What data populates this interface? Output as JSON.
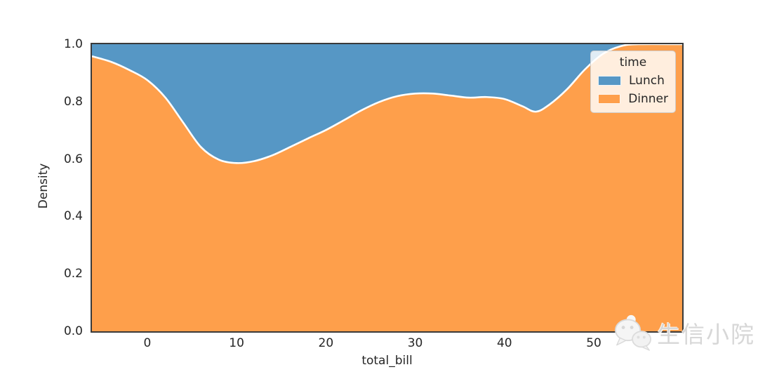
{
  "chart_data": {
    "type": "area",
    "variant": "kde_density_stacked_fill",
    "title": "",
    "xlabel": "total_bill",
    "ylabel": "Density",
    "xlim": [
      -6.2,
      59.9
    ],
    "ylim": [
      0.0,
      1.0
    ],
    "grid": false,
    "x_ticks": {
      "values": [
        0,
        10,
        20,
        30,
        40,
        50
      ],
      "labels": [
        "0",
        "10",
        "20",
        "30",
        "40",
        "50"
      ]
    },
    "y_ticks": {
      "values": [
        0.0,
        0.2,
        0.4,
        0.6,
        0.8,
        1.0
      ],
      "labels": [
        "0.0",
        "0.2",
        "0.4",
        "0.6",
        "0.8",
        "1.0"
      ]
    },
    "legend": {
      "title": "time",
      "position": "upper-right",
      "entries": [
        {
          "label": "Lunch",
          "color": "#5697c5"
        },
        {
          "label": "Dinner",
          "color": "#fe9f4b"
        }
      ]
    },
    "boundary_stroke": "#ffffff",
    "series": [
      {
        "name": "Dinner",
        "color": "#fe9f4b",
        "stack_role": "bottom",
        "x": [
          -6.2,
          -4,
          -2,
          0,
          2,
          4,
          6,
          8,
          10,
          12,
          14,
          16,
          18,
          20,
          22,
          24,
          26,
          28,
          30,
          32,
          34,
          36,
          38,
          40,
          42,
          43.5,
          45,
          47,
          49,
          51,
          53,
          55,
          59.9
        ],
        "share": [
          0.958,
          0.938,
          0.91,
          0.875,
          0.815,
          0.728,
          0.642,
          0.598,
          0.586,
          0.593,
          0.613,
          0.642,
          0.672,
          0.701,
          0.735,
          0.77,
          0.799,
          0.819,
          0.828,
          0.828,
          0.821,
          0.814,
          0.816,
          0.809,
          0.784,
          0.765,
          0.789,
          0.843,
          0.912,
          0.966,
          0.993,
          1.0,
          1.0
        ]
      },
      {
        "name": "Lunch",
        "color": "#5697c5",
        "stack_role": "top",
        "note": "fills remainder up to density 1.0"
      }
    ]
  },
  "watermark": {
    "text": "生信小院",
    "icon": "wechat"
  },
  "colors": {
    "spine": "#3a3a3a",
    "tick_text": "#262626",
    "curve": "#ffffff"
  }
}
